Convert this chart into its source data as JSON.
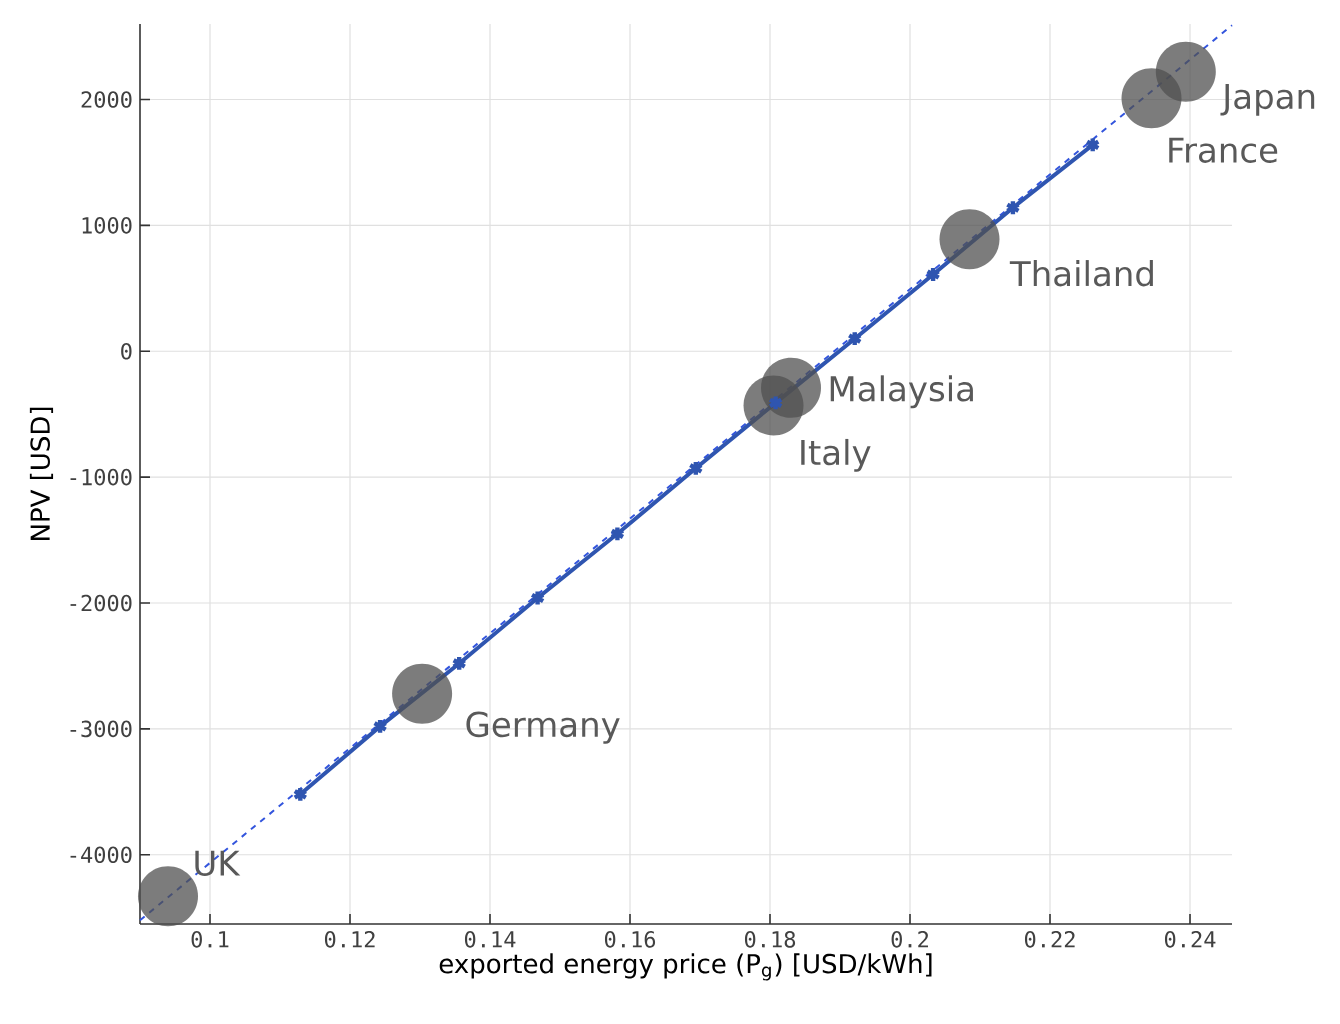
{
  "chart_data": {
    "type": "line",
    "xlabel": "exported energy price (P$_{g}$) [USD/kWh]",
    "ylabel": "NPV [USD]",
    "xlim": [
      0.09,
      0.246
    ],
    "ylim": [
      -4550,
      2600
    ],
    "xticks": [
      0.1,
      0.12,
      0.14,
      0.16,
      0.18,
      0.2,
      0.22,
      0.24
    ],
    "yticks": [
      -4000,
      -3000,
      -2000,
      -1000,
      0,
      1000,
      2000
    ],
    "grid": true,
    "series": [
      {
        "color": "#2f55b0",
        "marker": "cross",
        "line_style": "solid",
        "x": [
          0.1129,
          0.1243,
          0.1356,
          0.1468,
          0.1582,
          0.1694,
          0.1808,
          0.1921,
          0.2033,
          0.2147,
          0.2261
        ],
        "values": [
          -3520,
          -2980,
          -2480,
          -1960,
          -1450,
          -930,
          -410,
          100,
          610,
          1140,
          1640
        ]
      },
      {
        "color": "#3355dd",
        "marker": "none",
        "line_style": "dashed",
        "x": [
          0.09,
          0.246
        ],
        "values": [
          -4520,
          2590
        ]
      },
      {
        "type": "scatter",
        "color": "#505050",
        "marker": "circle",
        "x": [
          0.094,
          0.1303,
          0.1805,
          0.183,
          0.2085,
          0.2345,
          0.2394
        ],
        "values": [
          -4330,
          -2720,
          -430,
          -290,
          890,
          2010,
          2220
        ]
      }
    ],
    "annotations": [
      {
        "text": "UK",
        "x": 0.094,
        "y": -4330
      },
      {
        "text": "Germany",
        "x": 0.1303,
        "y": -2720
      },
      {
        "text": "Italy",
        "x": 0.1805,
        "y": -430
      },
      {
        "text": "Malaysia",
        "x": 0.183,
        "y": -290
      },
      {
        "text": "Thailand",
        "x": 0.2085,
        "y": 890
      },
      {
        "text": "France",
        "x": 0.2345,
        "y": 2010
      },
      {
        "text": "Japan",
        "x": 0.2394,
        "y": 2220
      }
    ]
  }
}
